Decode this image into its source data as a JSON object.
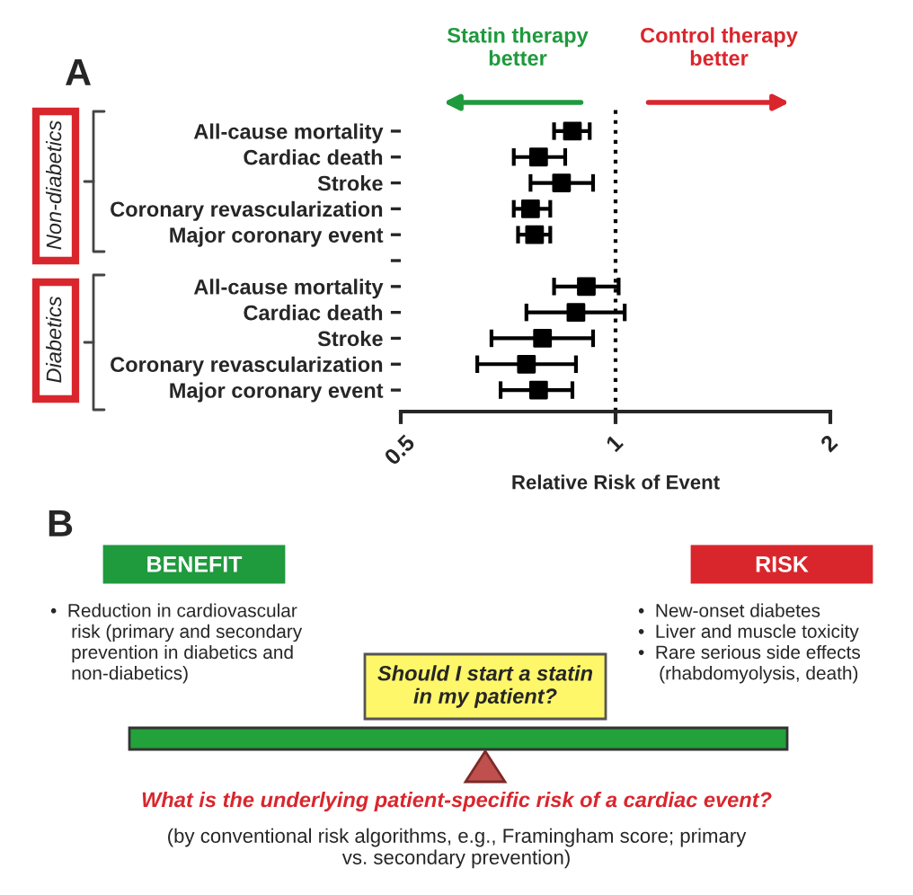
{
  "chart_data": {
    "type": "scatter",
    "orientation": "horizontal",
    "log": "x",
    "xlabel": "Relative Risk of Event",
    "categories": [
      "All-cause mortality",
      "Cardiac death",
      "Stroke",
      "Coronary revascularization",
      "Major coronary event",
      null,
      "All-cause mortality",
      "Cardiac death",
      "Stroke",
      "Coronary revascularization",
      "Major coronary event"
    ],
    "color": "#000000",
    "values": [
      0.87,
      0.78,
      0.84,
      0.76,
      0.77,
      null,
      0.91,
      0.88,
      0.79,
      0.75,
      0.78
    ],
    "errors": [
      [
        0.82,
        0.92
      ],
      [
        0.72,
        0.85
      ],
      [
        0.76,
        0.93
      ],
      [
        0.72,
        0.81
      ],
      [
        0.73,
        0.81
      ],
      null,
      [
        0.82,
        1.01
      ],
      [
        0.75,
        1.03
      ],
      [
        0.67,
        0.93
      ],
      [
        0.64,
        0.88
      ],
      [
        0.69,
        0.87
      ]
    ],
    "marker": "square",
    "xlim": [
      0.5,
      2
    ],
    "xticks": [
      0.5,
      1,
      2
    ],
    "ref_lines": [
      {
        "axis": "x",
        "value": 1,
        "line_style": "dotted",
        "color": "#000000"
      }
    ],
    "annotations": [
      "A",
      "Statin therapy\nbetter",
      "Control therapy\nbetter",
      "Non-diabetics",
      "Diabetics",
      "B",
      "BENEFIT",
      "RISK",
      "•  Reduction in cardiovascular\n    risk (primary and secondary\n    prevention in diabetics and\n    non-diabetics)",
      "•  New-onset diabetes\n•  Liver and muscle toxicity\n•  Rare serious side effects\n    (rhabdomyolysis, death)",
      "Should I start a statin\nin my patient?",
      "What is the underlying patient-specific risk of a cardiac event?",
      "(by conventional risk algorithms, e.g., Framingham score; primary\nvs. secondary prevention)"
    ]
  }
}
